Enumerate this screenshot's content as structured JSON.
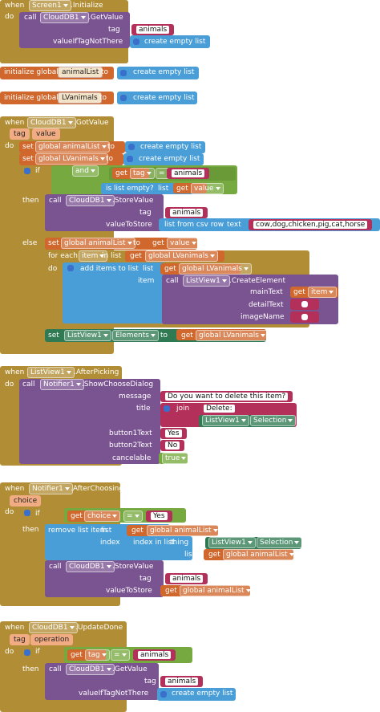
{
  "blocks": [
    [
      "when",
      "Screen1",
      ".Initialize",
      "do",
      "call",
      "CloudDB1",
      ".GetValue",
      "tag",
      "animals",
      "valueIfTagNotThere",
      "create empty list"
    ],
    [
      "initialize global",
      "animalList",
      "to",
      "create empty list"
    ],
    [
      "initialize global",
      "LVanimals",
      "to",
      "create empty list"
    ],
    [
      "when",
      "CloudDB1",
      ".GotValue",
      "tag",
      "value",
      "do",
      "set",
      "global animalList",
      "to",
      "create empty list",
      "set",
      "global LVanimals",
      "to",
      "create empty list",
      "if",
      "and",
      "get",
      "tag",
      "=",
      "animals",
      "is list empty?",
      "list",
      "get",
      "value",
      "then",
      "call",
      "CloudDB1",
      ".StoreValue",
      "tag",
      "animals",
      "valueToStore",
      "list from csv row",
      "text",
      "cow,dog,chicken,pig,cat,horse",
      "else",
      "set",
      "global animalList",
      "to",
      "get",
      "value",
      "for each",
      "item",
      "in list",
      "get",
      "global LVanimals",
      "do",
      "add items to list",
      "list",
      "get",
      "global LVanimals",
      "item",
      "call",
      "ListView1",
      ".CreateElement",
      "mainText",
      "get",
      "item",
      "detailText",
      "imageName",
      "set",
      "ListView1",
      "Elements",
      "to",
      "get",
      "global LVanimals"
    ],
    [
      "when",
      "ListView1",
      ".AfterPicking",
      "do",
      "call",
      "Notifier1",
      ".ShowChooseDialog",
      "message",
      "Do you want to delete this item?",
      "title",
      "join",
      "Delete:",
      "ListView1",
      "Selection",
      "button1Text",
      "Yes",
      "button2Text",
      "No",
      "cancelable",
      "true"
    ],
    [
      "when",
      "Notifier1",
      ".AfterChoosing",
      "choice",
      "do",
      "if",
      "get",
      "choice",
      "=",
      "Yes",
      "then",
      "remove list item",
      "list",
      "get",
      "global animalList",
      "index",
      "index in list",
      "thing",
      "ListView1",
      "Selection",
      "list",
      "get",
      "global animalList",
      "call",
      "CloudDB1",
      ".StoreValue",
      "tag",
      "animals",
      "valueToStore",
      "get",
      "global animalList"
    ],
    [
      "when",
      "CloudDB1",
      ".UpdateDone",
      "tag",
      "operation",
      "do",
      "if",
      "get",
      "tag",
      "=",
      "animals",
      "then",
      "call",
      "CloudDB1",
      ".GetValue",
      "tag",
      "animals",
      "valueIfTagNotThere",
      "create empty list"
    ]
  ]
}
